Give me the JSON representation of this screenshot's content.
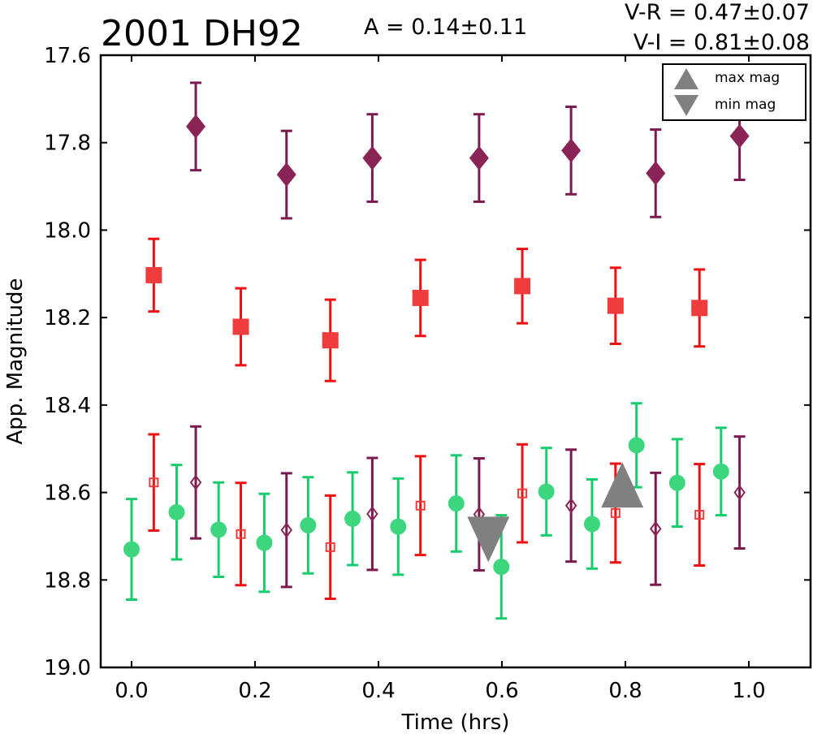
{
  "chart_data": {
    "type": "scatter",
    "title": "2001 DH92",
    "amplitude_text": "A  = 0.14±0.11",
    "color_index_text": [
      "V-R = 0.47±0.07",
      "V-I  = 0.81±0.08"
    ],
    "xlabel": "Time (hrs)",
    "ylabel": "App. Magnitude",
    "xlim": [
      -0.05,
      1.1
    ],
    "ylim": [
      19.0,
      17.6
    ],
    "y_inverted": true,
    "xticks": [
      "0.0",
      "0.2",
      "0.4",
      "0.6",
      "0.8",
      "1.0"
    ],
    "yticks": [
      "17.6",
      "17.8",
      "18.0",
      "18.2",
      "18.4",
      "18.6",
      "18.8",
      "19.0"
    ],
    "grid": false,
    "legend_position": "top-right",
    "legend": [
      {
        "label": "max mag",
        "marker": "triangle-up",
        "color": "#808080"
      },
      {
        "label": "min mag",
        "marker": "triangle-down",
        "color": "#808080"
      }
    ],
    "series": [
      {
        "marker": "diamond",
        "filled": true,
        "color": "#8b2456",
        "errcolor": "#7a1a4e",
        "x": [
          0.104,
          0.251,
          0.39,
          0.563,
          0.712,
          0.849,
          0.985
        ],
        "y": [
          17.763,
          17.873,
          17.835,
          17.835,
          17.818,
          17.87,
          17.785
        ],
        "err": [
          0.1,
          0.1,
          0.1,
          0.1,
          0.1,
          0.1,
          0.1
        ]
      },
      {
        "marker": "square",
        "filled": true,
        "color": "#f03c3c",
        "errcolor": "#ee1111",
        "x": [
          0.036,
          0.177,
          0.322,
          0.468,
          0.633,
          0.784,
          0.92
        ],
        "y": [
          18.103,
          18.221,
          18.252,
          18.155,
          18.128,
          18.173,
          18.178
        ],
        "err": [
          0.083,
          0.088,
          0.093,
          0.087,
          0.085,
          0.087,
          0.088
        ]
      },
      {
        "marker": "circle",
        "filled": true,
        "color": "#3dd67e",
        "errcolor": "#18cc6e",
        "x": [
          0.0,
          0.073,
          0.141,
          0.215,
          0.286,
          0.358,
          0.432,
          0.526,
          0.599,
          0.672,
          0.746,
          0.818,
          0.884,
          0.955
        ],
        "y": [
          18.73,
          18.645,
          18.685,
          18.715,
          18.675,
          18.66,
          18.678,
          18.625,
          18.77,
          18.598,
          18.672,
          18.492,
          18.578,
          18.552
        ],
        "err": [
          0.115,
          0.108,
          0.108,
          0.112,
          0.11,
          0.106,
          0.11,
          0.11,
          0.118,
          0.1,
          0.102,
          0.096,
          0.1,
          0.1
        ]
      },
      {
        "marker": "square",
        "filled": false,
        "color": "#f03c3c",
        "errcolor": "#ee1111",
        "x": [
          0.036,
          0.177,
          0.322,
          0.468,
          0.633,
          0.784,
          0.92
        ],
        "y": [
          18.577,
          18.695,
          18.725,
          18.63,
          18.602,
          18.647,
          18.651
        ],
        "err": [
          0.11,
          0.117,
          0.118,
          0.113,
          0.112,
          0.113,
          0.116
        ]
      },
      {
        "marker": "diamond",
        "filled": false,
        "color": "#8b2456",
        "errcolor": "#7a1a4e",
        "x": [
          0.104,
          0.251,
          0.39,
          0.563,
          0.712,
          0.849,
          0.985
        ],
        "y": [
          18.577,
          18.686,
          18.649,
          18.65,
          18.63,
          18.683,
          18.6
        ],
        "err": [
          0.128,
          0.13,
          0.128,
          0.128,
          0.128,
          0.128,
          0.128
        ]
      }
    ],
    "markers_minmax": [
      {
        "label": "min mag",
        "shape": "triangle-down",
        "x": 0.578,
        "y": 18.7,
        "color": "#808080"
      },
      {
        "label": "max mag",
        "shape": "triangle-up",
        "x": 0.795,
        "y": 18.59,
        "color": "#808080"
      }
    ]
  }
}
